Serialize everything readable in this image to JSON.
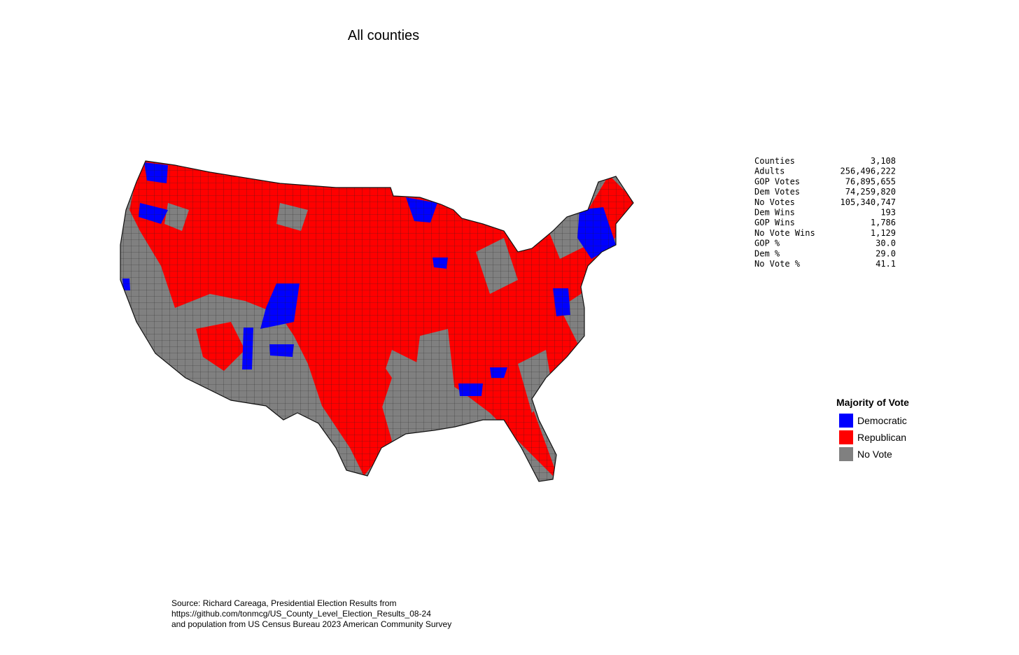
{
  "title": "All counties",
  "stats": {
    "rows": [
      [
        "Counties",
        "3,108"
      ],
      [
        "Adults",
        "256,496,222"
      ],
      [
        "GOP Votes",
        "76,895,655"
      ],
      [
        "Dem Votes",
        "74,259,820"
      ],
      [
        "No Votes",
        "105,340,747"
      ],
      [
        "Dem Wins",
        "193"
      ],
      [
        "GOP Wins",
        "1,786"
      ],
      [
        "No Vote Wins",
        "1,129"
      ],
      [
        "GOP %",
        "30.0"
      ],
      [
        "Dem %",
        "29.0"
      ],
      [
        "No Vote %",
        "41.1"
      ]
    ]
  },
  "legend": {
    "title": "Majority of Vote",
    "items": [
      {
        "label": "Democratic",
        "color": "#0000ff"
      },
      {
        "label": "Republican",
        "color": "#ff0000"
      },
      {
        "label": "No Vote",
        "color": "#808080"
      }
    ]
  },
  "source": [
    "Source: Richard Careaga, Presidential Election Results from",
    "https://github.com/tonmcg/US_County_Level_Election_Results_08-24",
    "and population from US Census Bureau 2023 American Community Survey"
  ]
}
